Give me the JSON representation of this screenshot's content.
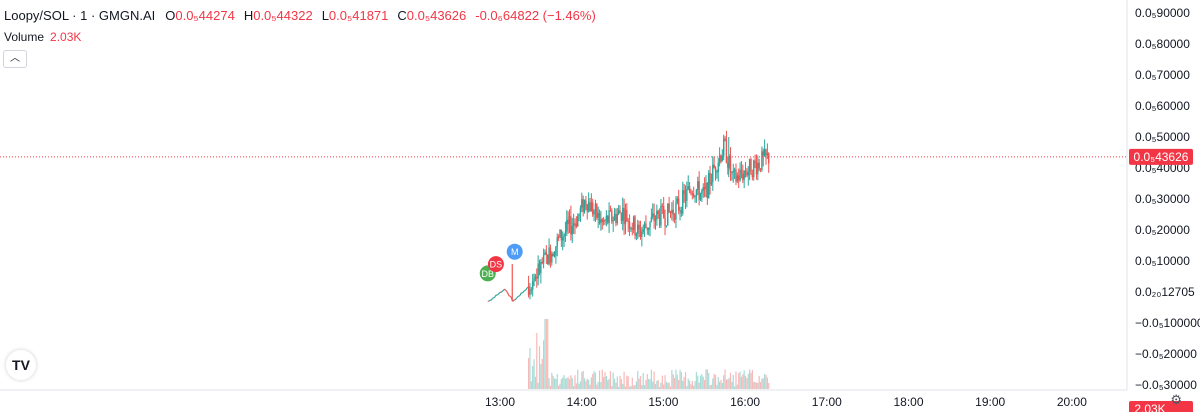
{
  "header": {
    "symbol": "Loopy/SOL · 1 · GMGN.AI",
    "o_label": "O",
    "o_value": "0.0₅44274",
    "h_label": "H",
    "h_value": "0.0₅44322",
    "l_label": "L",
    "l_value": "0.0₅41871",
    "c_label": "C",
    "c_value": "0.0₅43626",
    "change": "-0.0₆64822 (−1.46%)"
  },
  "volume": {
    "label": "Volume",
    "value": "2.03K"
  },
  "collapse_icon": "chevron-up-icon",
  "logo_text": "TV",
  "settings_icon": "gear-icon",
  "colors": {
    "up": "#26a69a",
    "down": "#ef5350",
    "accent": "#f23645"
  },
  "chart_data": {
    "type": "candlestick",
    "price_axis_labels": [
      "0.0₅90000",
      "0.0₅80000",
      "0.0₅70000",
      "0.0₅60000",
      "0.0₅50000",
      "0.0₅40000",
      "0.0₅30000",
      "0.0₅20000",
      "0.0₅10000",
      "0.0₂₀12705",
      "−0.0₅100000",
      "−0.0₅20000",
      "−0.0₅30000"
    ],
    "time_axis_labels": [
      "13:00",
      "14:00",
      "15:00",
      "16:00",
      "17:00",
      "18:00",
      "19:00",
      "20:00"
    ],
    "last_price_label": "0.0₅43626",
    "last_price": 4.36,
    "volume_label": "2.03K",
    "markers": [
      {
        "text": "DB",
        "time": 12.85,
        "price": 0.6,
        "color": "#4caf50"
      },
      {
        "text": "DS",
        "time": 12.95,
        "price": 0.9,
        "color": "#f23645"
      },
      {
        "text": "M",
        "time": 13.18,
        "price": 1.3,
        "color": "#4e9cf5"
      }
    ],
    "price_series_anchor": [
      [
        12.85,
        -0.3
      ],
      [
        13.05,
        0.1
      ],
      [
        13.15,
        -0.3
      ],
      [
        13.35,
        0.2
      ],
      [
        13.55,
        1.0
      ],
      [
        13.75,
        1.8
      ],
      [
        13.95,
        2.4
      ],
      [
        14.05,
        3.0
      ],
      [
        14.25,
        2.2
      ],
      [
        14.5,
        2.6
      ],
      [
        14.7,
        1.9
      ],
      [
        14.9,
        2.4
      ],
      [
        15.05,
        2.5
      ],
      [
        15.2,
        2.8
      ],
      [
        15.35,
        3.4
      ],
      [
        15.5,
        3.1
      ],
      [
        15.65,
        4.2
      ],
      [
        15.75,
        4.7
      ],
      [
        15.85,
        3.6
      ],
      [
        16.0,
        3.9
      ],
      [
        16.3,
        4.36
      ]
    ]
  }
}
